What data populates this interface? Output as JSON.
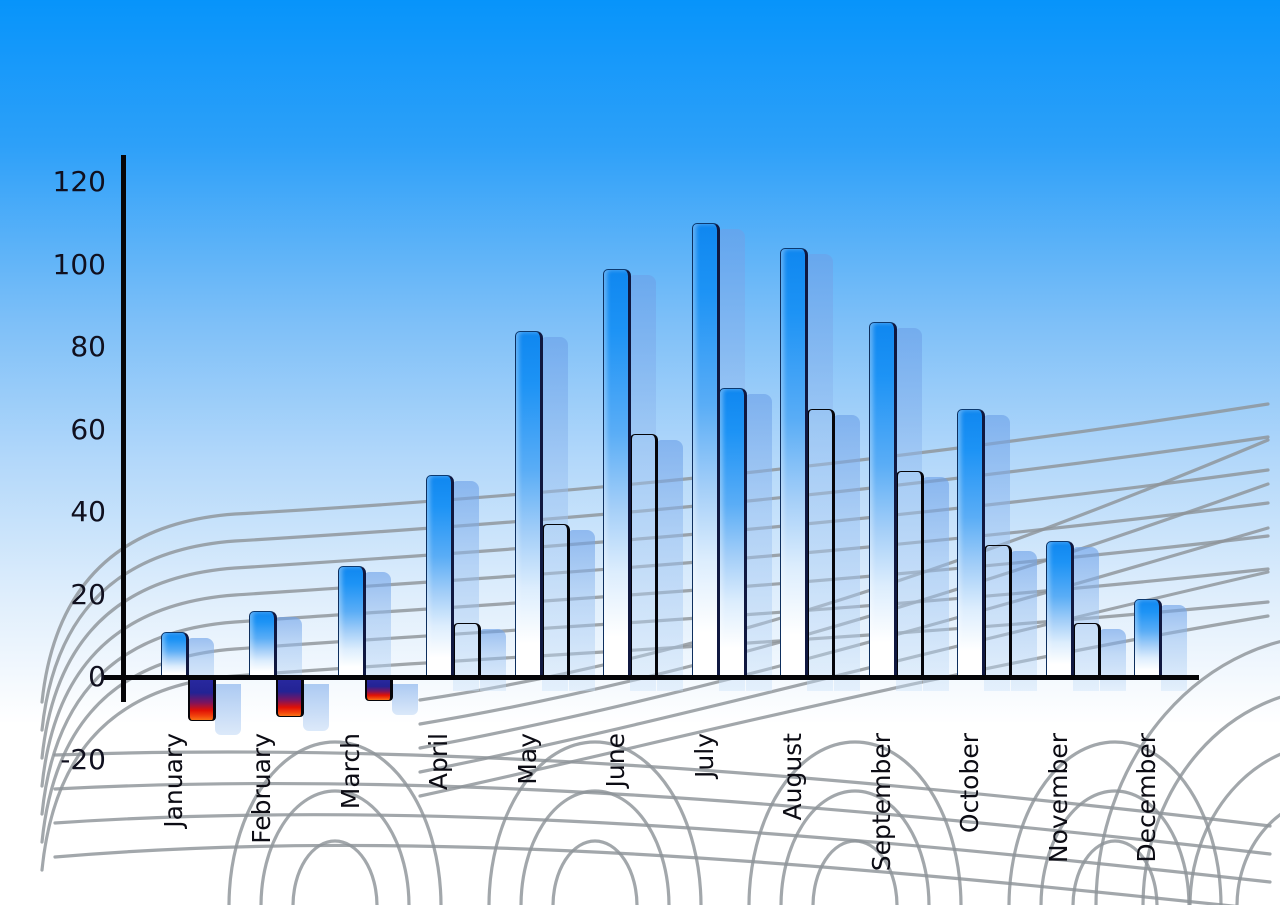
{
  "chart_data": {
    "type": "bar",
    "title": "",
    "categories": [
      "January",
      "February",
      "March",
      "April",
      "May",
      "June",
      "July",
      "August",
      "September",
      "October",
      "November",
      "December"
    ],
    "series": [
      {
        "name": "primary-blue",
        "values": [
          11,
          16,
          27,
          49,
          84,
          99,
          110,
          104,
          86,
          65,
          33,
          19
        ]
      },
      {
        "name": "secondary",
        "values": [
          -10,
          -9,
          -5,
          13,
          37,
          59,
          70,
          65,
          50,
          32,
          13,
          null
        ]
      }
    ],
    "secondary_style": [
      "rainbow",
      "rainbow",
      "rainbow",
      "rainbow",
      "rainbow",
      "rainbow",
      "blue",
      "rainbow",
      "rainbow",
      "rainbow",
      "rainbow",
      null
    ],
    "has_ghost_shadow_bars": true,
    "y_axis": {
      "ticks": [
        120,
        100,
        80,
        60,
        40,
        20,
        0,
        -20
      ],
      "min": -20,
      "max": 120
    },
    "x_axis": {
      "label_rotation_degrees": -90
    },
    "legend": "none",
    "grid": "decorative curved perspective mesh",
    "colors": {
      "sky_top": "#0794fa",
      "sky_bottom": "#ffffff",
      "bar_blue_top": "#0f87f0",
      "bar_blue_bottom": "#ffffff",
      "rainbow_navy": "#1e1e90",
      "rainbow_red": "#e81007",
      "rainbow_yellow": "#ffee00",
      "ghost_bar": "#9cc0ee",
      "axis": "#050508",
      "grid_line": "#8e9499",
      "label_text": "#0c0c14"
    }
  }
}
